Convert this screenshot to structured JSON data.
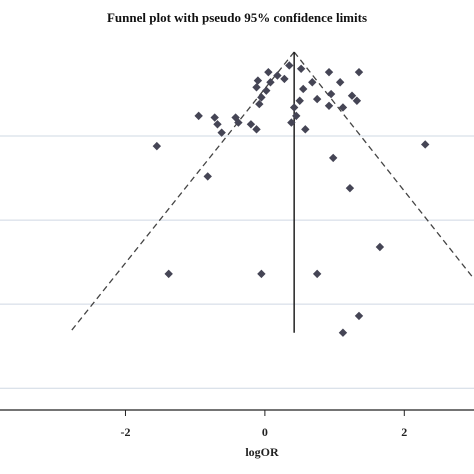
{
  "chart_data": {
    "type": "scatter",
    "title": "Funnel plot with pseudo 95% confidence limits",
    "xlabel": "logOR",
    "ylabel": "",
    "xlim": [
      -3.8,
      3.0
    ],
    "ylim": [
      0,
      2.1
    ],
    "y_reversed": true,
    "grid": true,
    "x_ticks": [
      -2,
      0,
      2
    ],
    "x_tick_labels": [
      "-2",
      "0",
      "2"
    ],
    "y_gridlines": [
      0.5,
      1.0,
      1.5,
      2.0
    ],
    "pooled_effect": 0.42,
    "reference_line": {
      "x": 0.42,
      "y_from": 0,
      "y_to": 1.67
    },
    "confidence_limits": {
      "style": "dashed",
      "apex": [
        0.42,
        0
      ],
      "left_end": [
        -2.8,
        1.67
      ],
      "right_end": [
        3.0,
        1.35
      ]
    },
    "points": [
      {
        "x": 0.35,
        "y": 0.08
      },
      {
        "x": 0.52,
        "y": 0.1
      },
      {
        "x": 0.05,
        "y": 0.12
      },
      {
        "x": 0.18,
        "y": 0.14
      },
      {
        "x": 0.92,
        "y": 0.12
      },
      {
        "x": 1.35,
        "y": 0.12
      },
      {
        "x": 0.28,
        "y": 0.16
      },
      {
        "x": 0.08,
        "y": 0.18
      },
      {
        "x": 0.68,
        "y": 0.18
      },
      {
        "x": 1.08,
        "y": 0.18
      },
      {
        "x": -0.1,
        "y": 0.17
      },
      {
        "x": -0.12,
        "y": 0.21
      },
      {
        "x": 0.02,
        "y": 0.23
      },
      {
        "x": 0.55,
        "y": 0.22
      },
      {
        "x": 0.95,
        "y": 0.25
      },
      {
        "x": 1.25,
        "y": 0.26
      },
      {
        "x": -0.05,
        "y": 0.27
      },
      {
        "x": 0.5,
        "y": 0.29
      },
      {
        "x": 0.75,
        "y": 0.28
      },
      {
        "x": -0.08,
        "y": 0.31
      },
      {
        "x": 1.32,
        "y": 0.29
      },
      {
        "x": 0.42,
        "y": 0.33
      },
      {
        "x": 0.92,
        "y": 0.32
      },
      {
        "x": 1.12,
        "y": 0.33
      },
      {
        "x": -0.95,
        "y": 0.38
      },
      {
        "x": -0.72,
        "y": 0.39
      },
      {
        "x": -0.42,
        "y": 0.39
      },
      {
        "x": 0.45,
        "y": 0.38
      },
      {
        "x": -0.68,
        "y": 0.43
      },
      {
        "x": -0.38,
        "y": 0.42
      },
      {
        "x": -0.2,
        "y": 0.43
      },
      {
        "x": 0.38,
        "y": 0.42
      },
      {
        "x": -0.12,
        "y": 0.46
      },
      {
        "x": 0.58,
        "y": 0.46
      },
      {
        "x": -0.62,
        "y": 0.48
      },
      {
        "x": -1.55,
        "y": 0.56
      },
      {
        "x": 2.3,
        "y": 0.55
      },
      {
        "x": 0.98,
        "y": 0.63
      },
      {
        "x": -0.82,
        "y": 0.74
      },
      {
        "x": 1.22,
        "y": 0.81
      },
      {
        "x": 1.65,
        "y": 1.16
      },
      {
        "x": -1.38,
        "y": 1.32
      },
      {
        "x": -0.05,
        "y": 1.32
      },
      {
        "x": 0.75,
        "y": 1.32
      },
      {
        "x": 1.35,
        "y": 1.57
      },
      {
        "x": 1.12,
        "y": 1.67
      }
    ],
    "colors": {
      "background": "#ffffff",
      "gridline": "#cfd8e3",
      "marker": "#454555",
      "line": "#222222"
    }
  }
}
